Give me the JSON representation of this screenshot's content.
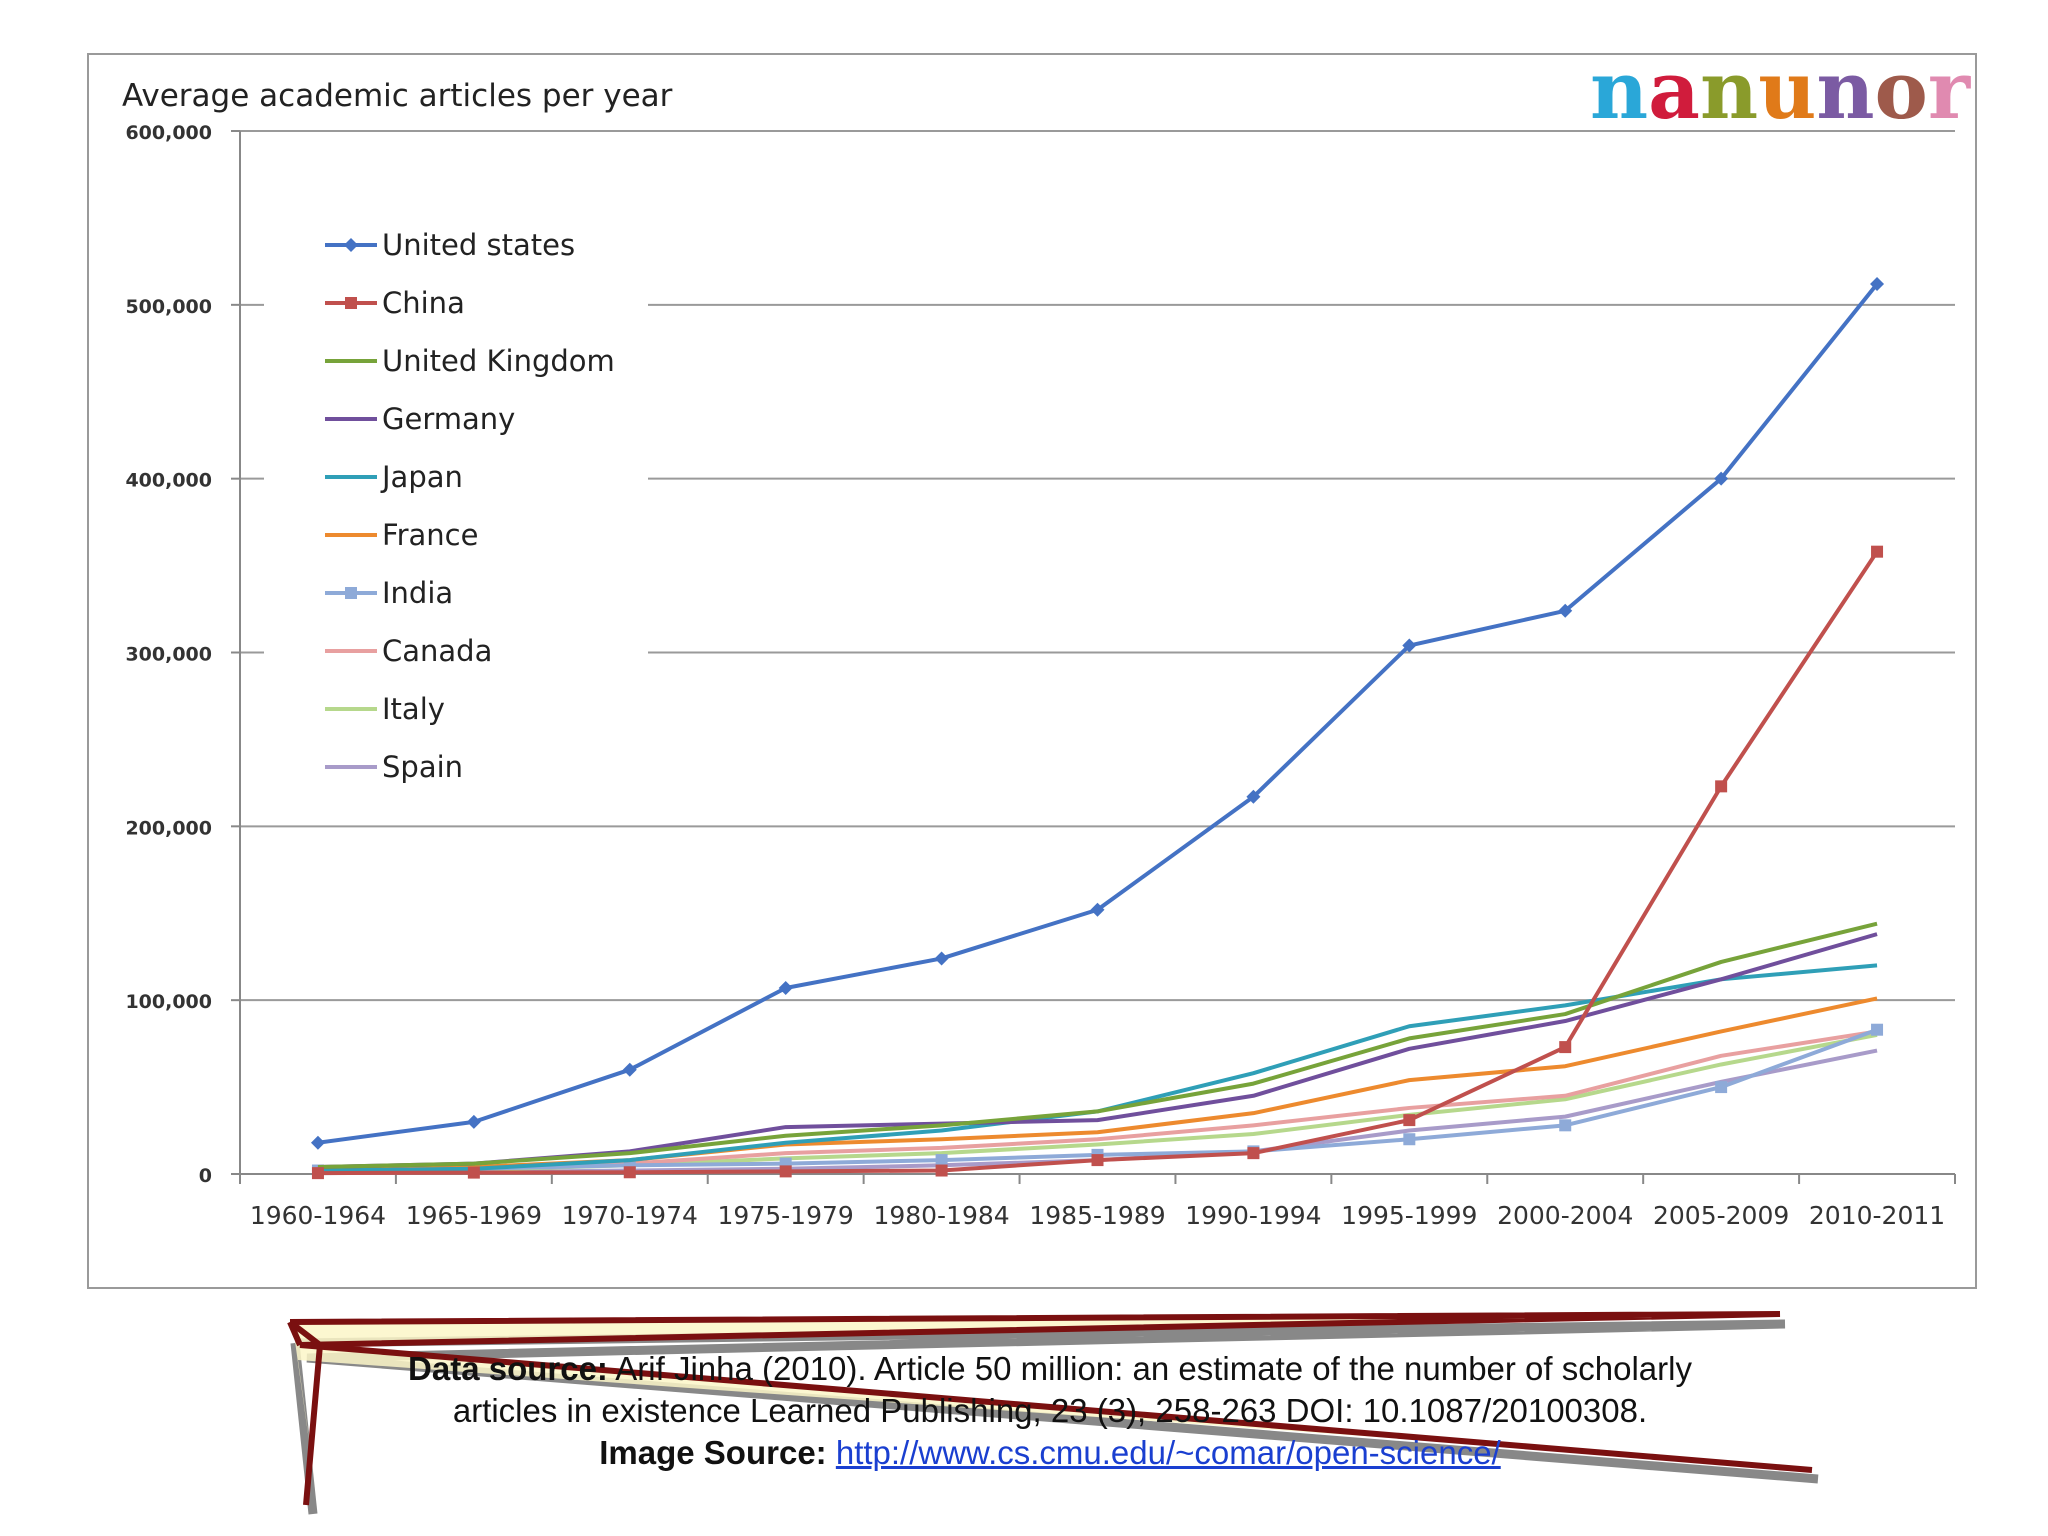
{
  "brand": {
    "letters": [
      "n",
      "a",
      "n",
      "u",
      "n",
      "o",
      "r"
    ],
    "colors": [
      "#2aa7d8",
      "#d01c3c",
      "#8a9b2b",
      "#e07a19",
      "#7b5ba3",
      "#9e5a4b",
      "#e08ab0"
    ]
  },
  "chart_data": {
    "type": "line",
    "title": "Average academic articles per year",
    "categories": [
      "1960-1964",
      "1965-1969",
      "1970-1974",
      "1975-1979",
      "1980-1984",
      "1985-1989",
      "1990-1994",
      "1995-1999",
      "2000-2004",
      "2005-2009",
      "2010-2011"
    ],
    "ylim": [
      0,
      600000
    ],
    "yticks": [
      0,
      100000,
      200000,
      300000,
      400000,
      500000,
      600000
    ],
    "ytick_labels": [
      "0",
      "100,000",
      "200,000",
      "300,000",
      "400,000",
      "500,000",
      "600,000"
    ],
    "grid": true,
    "legend_position": "top-left",
    "series": [
      {
        "name": "United states",
        "color": "#4472c4",
        "marker": "diamond",
        "values": [
          18000,
          30000,
          60000,
          107000,
          124000,
          152000,
          217000,
          304000,
          324000,
          400000,
          512000
        ]
      },
      {
        "name": "China",
        "color": "#c0504d",
        "marker": "square",
        "values": [
          500,
          800,
          1000,
          1500,
          2000,
          8000,
          12000,
          31000,
          73000,
          223000,
          358000
        ]
      },
      {
        "name": "United Kingdom",
        "color": "#77a33a",
        "marker": "none",
        "values": [
          4000,
          6000,
          12000,
          22000,
          28000,
          36000,
          52000,
          78000,
          92000,
          122000,
          144000
        ]
      },
      {
        "name": "Germany",
        "color": "#704f9c",
        "marker": "none",
        "values": [
          4000,
          6000,
          13000,
          27000,
          29000,
          31000,
          45000,
          72000,
          88000,
          112000,
          138000
        ]
      },
      {
        "name": "Japan",
        "color": "#2f9fb7",
        "marker": "none",
        "values": [
          2000,
          3000,
          8000,
          18000,
          25000,
          36000,
          58000,
          85000,
          97000,
          112000,
          120000
        ]
      },
      {
        "name": "France",
        "color": "#ed8a2e",
        "marker": "none",
        "values": [
          3000,
          4000,
          8000,
          17000,
          20000,
          24000,
          35000,
          54000,
          62000,
          82000,
          101000
        ]
      },
      {
        "name": "India",
        "color": "#8eaad8",
        "marker": "square",
        "values": [
          2000,
          3000,
          5000,
          6000,
          8000,
          11000,
          13000,
          20000,
          28000,
          50000,
          83000
        ]
      },
      {
        "name": "Canada",
        "color": "#e8a0a0",
        "marker": "none",
        "values": [
          2000,
          3000,
          6000,
          12000,
          15000,
          20000,
          28000,
          38000,
          45000,
          68000,
          82000
        ]
      },
      {
        "name": "Italy",
        "color": "#b6d88c",
        "marker": "none",
        "values": [
          1500,
          2500,
          5000,
          9000,
          12000,
          17000,
          23000,
          34000,
          43000,
          63000,
          80000
        ]
      },
      {
        "name": "Spain",
        "color": "#a89bc9",
        "marker": "none",
        "values": [
          500,
          1000,
          2000,
          3000,
          5000,
          8000,
          13000,
          25000,
          33000,
          53000,
          71000
        ]
      }
    ]
  },
  "caption": {
    "data_source_label": "Data source:",
    "data_source_line1": "Arif Jinha (2010). Article 50 million: an estimate of the number of scholarly",
    "data_source_line2": "articles in existence Learned Publishing, 23 (3), 258-263 DOI: 10.1087/20100308.",
    "image_source_label": "Image Source:",
    "image_source_url": "http://www.cs.cmu.edu/~comar/open-science/"
  }
}
